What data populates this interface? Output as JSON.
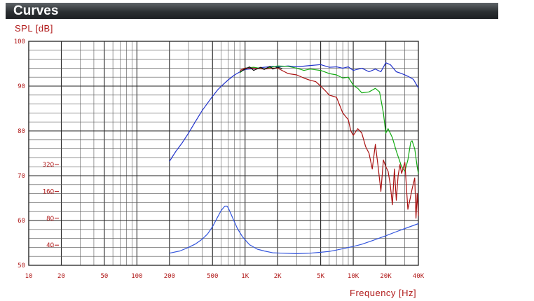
{
  "header": {
    "title": "Curves"
  },
  "colors": {
    "spl_blue": "#2233cc",
    "spl_red": "#aa1111",
    "spl_green": "#11aa11",
    "spl_black": "#111111",
    "impedance": "#3355dd",
    "label_red": "#b01818"
  },
  "chart_data": {
    "type": "line",
    "title": "",
    "ylabel": "SPL [dB]",
    "xlabel": "Frequency [Hz]",
    "xscale": "log",
    "xlim": [
      10,
      40000
    ],
    "ylim": [
      50,
      100
    ],
    "grid": true,
    "y_ticks": [
      {
        "value": 100,
        "label": "100"
      },
      {
        "value": 90,
        "label": "90"
      },
      {
        "value": 80,
        "label": "80"
      },
      {
        "value": 70,
        "label": "70"
      },
      {
        "value": 60,
        "label": "60"
      },
      {
        "value": 50,
        "label": "50"
      }
    ],
    "x_ticks": [
      {
        "value": 10,
        "label": "10"
      },
      {
        "value": 20,
        "label": "20"
      },
      {
        "value": 50,
        "label": "50"
      },
      {
        "value": 100,
        "label": "100"
      },
      {
        "value": 200,
        "label": "200"
      },
      {
        "value": 500,
        "label": "500"
      },
      {
        "value": 1000,
        "label": "1K"
      },
      {
        "value": 2000,
        "label": "2K"
      },
      {
        "value": 5000,
        "label": "5K"
      },
      {
        "value": 10000,
        "label": "10K"
      },
      {
        "value": 20000,
        "label": "20K"
      },
      {
        "value": 40000,
        "label": "40K"
      }
    ],
    "impedance_scale": [
      {
        "value": 72.5,
        "label": "32Ω"
      },
      {
        "value": 66.5,
        "label": "16Ω"
      },
      {
        "value": 60.5,
        "label": "8Ω"
      },
      {
        "value": 54.5,
        "label": "4Ω"
      }
    ],
    "series": [
      {
        "color": "#2233cc",
        "x": [
          200,
          230,
          260,
          300,
          350,
          400,
          450,
          500,
          560,
          630,
          700,
          800,
          900,
          1000,
          1200,
          1500,
          1800,
          2000,
          2500,
          3000,
          4000,
          5000,
          6000,
          7000,
          8000,
          9000,
          10000,
          12000,
          14000,
          16000,
          18000,
          20000,
          22000,
          25000,
          28000,
          32000,
          36000,
          40000
        ],
        "y": [
          73.2,
          75.5,
          77.2,
          79.5,
          82.2,
          84.5,
          86.2,
          87.7,
          89.2,
          90.4,
          91.4,
          92.5,
          93.2,
          93.7,
          93.9,
          94.2,
          94.4,
          94.3,
          94.5,
          94.3,
          94.6,
          94.8,
          94.2,
          94.3,
          94.0,
          94.3,
          93.5,
          94.0,
          93.2,
          93.8,
          93.2,
          95.2,
          94.8,
          93.2,
          92.8,
          92.2,
          91.5,
          89.6
        ]
      },
      {
        "color": "#11aa11",
        "x": [
          900,
          1000,
          1200,
          1500,
          1800,
          2000,
          2500,
          3000,
          3500,
          4000,
          5000,
          6000,
          7000,
          8000,
          9000,
          10000,
          11000,
          12000,
          14000,
          16000,
          17500,
          19000,
          20000,
          21000,
          23000,
          25000,
          28000,
          30000,
          32000,
          34000,
          35000,
          37000,
          39000,
          40000
        ],
        "y": [
          93.0,
          94.0,
          94.2,
          93.8,
          94.3,
          94.5,
          94.4,
          94.0,
          93.5,
          93.8,
          93.5,
          92.8,
          92.5,
          91.8,
          92.0,
          90.2,
          89.5,
          88.5,
          88.7,
          89.5,
          88.7,
          84.0,
          79.5,
          80.5,
          78.5,
          75.5,
          72.0,
          71.0,
          73.5,
          77.5,
          77.8,
          76.0,
          72.0,
          70.5
        ]
      },
      {
        "color": "#aa1111",
        "x": [
          900,
          1000,
          1200,
          1500,
          1800,
          2000,
          2500,
          3000,
          3500,
          4000,
          4500,
          5000,
          5500,
          6000,
          7000,
          8000,
          9000,
          9500,
          10000,
          11000,
          12000,
          13000,
          14000,
          15000,
          16000,
          17000,
          18000,
          19000,
          20000,
          21000,
          22000,
          23000,
          24000,
          25000,
          26000,
          27000,
          28000,
          30000,
          32000,
          33000,
          35000,
          37000,
          38000,
          39000,
          40000
        ],
        "y": [
          93.5,
          94.0,
          94.0,
          93.8,
          94.0,
          94.0,
          92.8,
          92.5,
          91.8,
          91.3,
          91.0,
          90.0,
          89.0,
          88.0,
          87.5,
          84.0,
          82.5,
          80.0,
          79.0,
          80.5,
          79.5,
          76.5,
          75.0,
          71.5,
          77.0,
          72.0,
          66.5,
          73.5,
          72.0,
          71.0,
          68.0,
          63.5,
          71.5,
          64.5,
          70.0,
          72.5,
          70.5,
          73.0,
          62.5,
          64.0,
          67.0,
          69.5,
          60.5,
          66.0,
          61.0
        ]
      },
      {
        "color": "#111111",
        "x": [
          900,
          1000,
          1100,
          1200,
          1400,
          1500,
          1700,
          1800,
          2000,
          2200
        ],
        "y": [
          93.2,
          93.8,
          94.3,
          93.5,
          94.2,
          93.7,
          94.4,
          93.8,
          94.2,
          93.9
        ]
      },
      {
        "color": "#3355dd",
        "x": [
          200,
          250,
          300,
          350,
          400,
          450,
          500,
          550,
          600,
          650,
          680,
          700,
          730,
          780,
          850,
          950,
          1100,
          1300,
          1500,
          1800,
          2200,
          3000,
          4000,
          5000,
          6000,
          7000,
          8000,
          10000,
          12000,
          15000,
          20000,
          25000,
          30000,
          40000
        ],
        "y": [
          52.7,
          53.2,
          54.0,
          54.8,
          55.8,
          57.0,
          58.6,
          60.5,
          62.2,
          63.2,
          63.2,
          62.8,
          61.8,
          60.2,
          58.2,
          56.3,
          54.6,
          53.6,
          53.2,
          52.8,
          52.7,
          52.6,
          52.7,
          52.9,
          53.1,
          53.4,
          53.7,
          54.2,
          54.7,
          55.5,
          56.6,
          57.5,
          58.2,
          59.3
        ]
      }
    ]
  }
}
